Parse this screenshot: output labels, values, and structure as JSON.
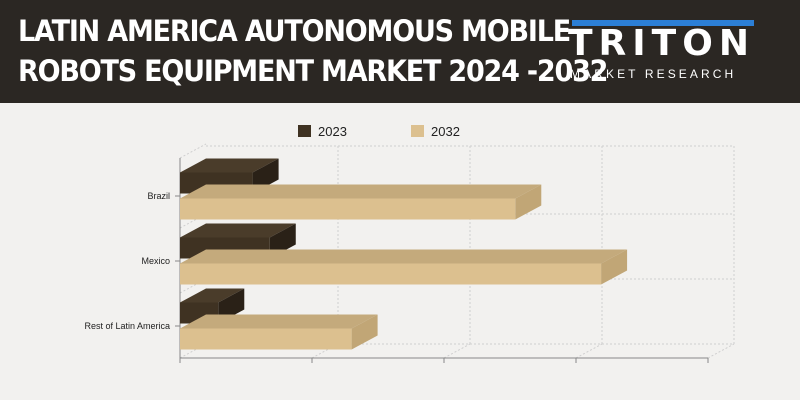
{
  "header": {
    "title_line1": "LATIN AMERICA AUTONOMOUS MOBILE",
    "title_line2": "ROBOTS EQUIPMENT MARKET 2024 -2032",
    "logo_main": "TRITON",
    "logo_sub": "MARKET RESEARCH"
  },
  "colors": {
    "header_bg": "#2b2723",
    "logo_accent": "#2c7fd6",
    "series_2023": "#3f3222",
    "series_2032": "#dcc08f"
  },
  "chart_data": {
    "type": "bar",
    "orientation": "horizontal",
    "three_d": true,
    "categories": [
      "Brazil",
      "Mexico",
      "Rest of Latin America"
    ],
    "series": [
      {
        "name": "2023",
        "values": [
          55,
          68,
          29
        ]
      },
      {
        "name": "2032",
        "values": [
          254,
          319,
          130
        ]
      }
    ],
    "xlim": [
      0,
      400
    ],
    "grid": true,
    "legend_position": "top-center"
  }
}
